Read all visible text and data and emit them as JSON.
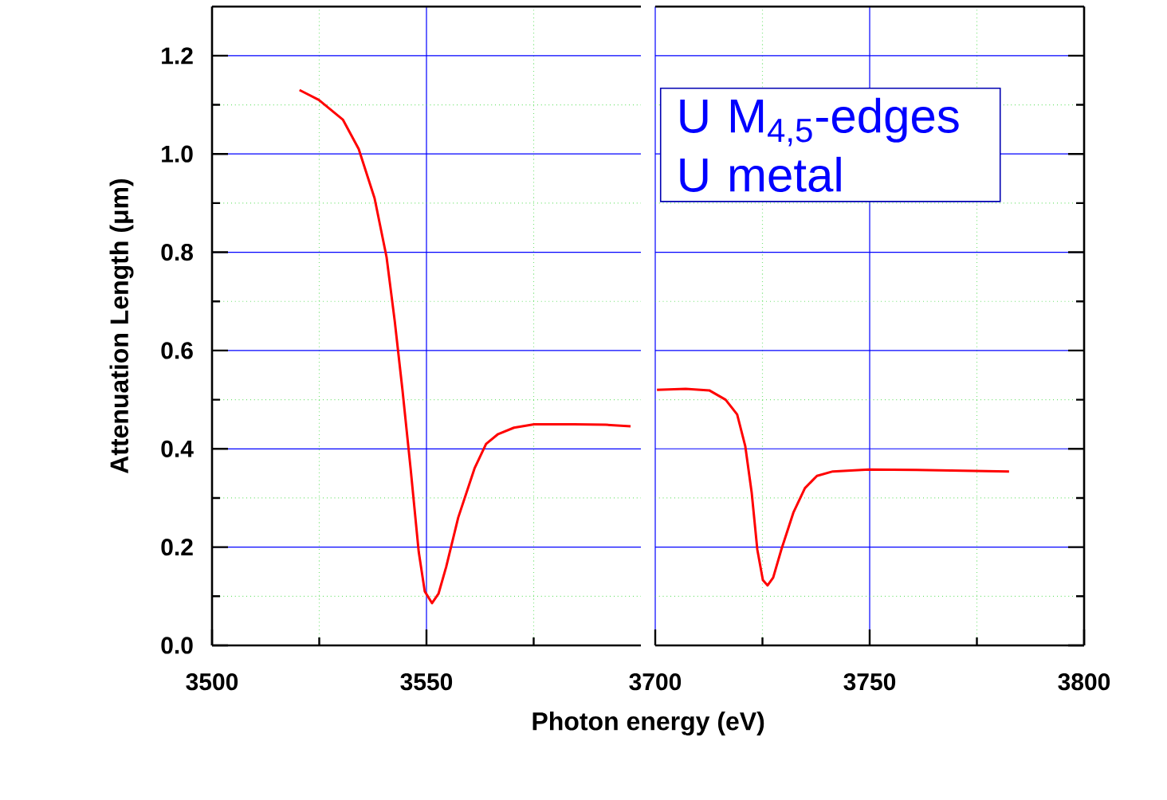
{
  "chart_data": [
    {
      "type": "line",
      "xlabel": "Photon energy (eV)",
      "ylabel": "Attenuation Length (μm)",
      "grid": true,
      "xlim": [
        3500,
        3600
      ],
      "xticks": [
        3500,
        {
          "value": 3525,
          "label": null
        },
        3550,
        {
          "value": 3575,
          "label": null
        }
      ],
      "ylim": [
        0,
        1.3
      ],
      "yticks": [
        {
          "value": 0,
          "label": "0.0"
        },
        {
          "value": 0.1,
          "label": null
        },
        0.2,
        {
          "value": 0.3,
          "label": null
        },
        0.4,
        {
          "value": 0.5,
          "label": null
        },
        0.6,
        {
          "value": 0.7,
          "label": null
        },
        0.8,
        {
          "value": 0.9,
          "label": null
        },
        {
          "value": 1.0,
          "label": "1.0"
        },
        {
          "value": 1.1,
          "label": null
        },
        1.2
      ],
      "series": [
        {
          "color": "#ff0000",
          "x": [
            3520.4,
            3524.9,
            3530.5,
            3534.2,
            3537.9,
            3540.7,
            3542.6,
            3544.4,
            3546.3,
            3548.2,
            3549.6,
            3551.3,
            3552.8,
            3554.6,
            3557.4,
            3561.2,
            3563.9,
            3566.7,
            3570.4,
            3575.1,
            3584.4,
            3591.8,
            3597.6
          ],
          "values": [
            1.13,
            1.11,
            1.07,
            1.01,
            0.91,
            0.79,
            0.66,
            0.52,
            0.36,
            0.19,
            0.11,
            0.086,
            0.105,
            0.16,
            0.26,
            0.36,
            0.41,
            0.43,
            0.443,
            0.45,
            0.45,
            0.449,
            0.446
          ]
        }
      ]
    },
    {
      "type": "line",
      "tick_labels": "x",
      "grid": true,
      "annotations": [
        "U M$_{4,5}$-edges",
        "U metal"
      ],
      "xlim": [
        3700,
        3800
      ],
      "xticks": [
        3700,
        {
          "value": 3725,
          "label": null
        },
        3750,
        {
          "value": 3775,
          "label": null
        },
        3800
      ],
      "ylim": [
        0,
        1.3
      ],
      "series": [
        {
          "color": "#ff0000",
          "x": [
            3700.4,
            3707.1,
            3712.6,
            3716.4,
            3719.1,
            3721.0,
            3722.5,
            3723.8,
            3725.1,
            3726.2,
            3727.5,
            3729.4,
            3732.2,
            3734.9,
            3737.7,
            3741.4,
            3749.8,
            3760.9,
            3782.5
          ],
          "values": [
            0.52,
            0.522,
            0.519,
            0.5,
            0.47,
            0.405,
            0.31,
            0.195,
            0.133,
            0.122,
            0.138,
            0.195,
            0.27,
            0.32,
            0.345,
            0.354,
            0.358,
            0.357,
            0.354
          ]
        }
      ]
    }
  ]
}
